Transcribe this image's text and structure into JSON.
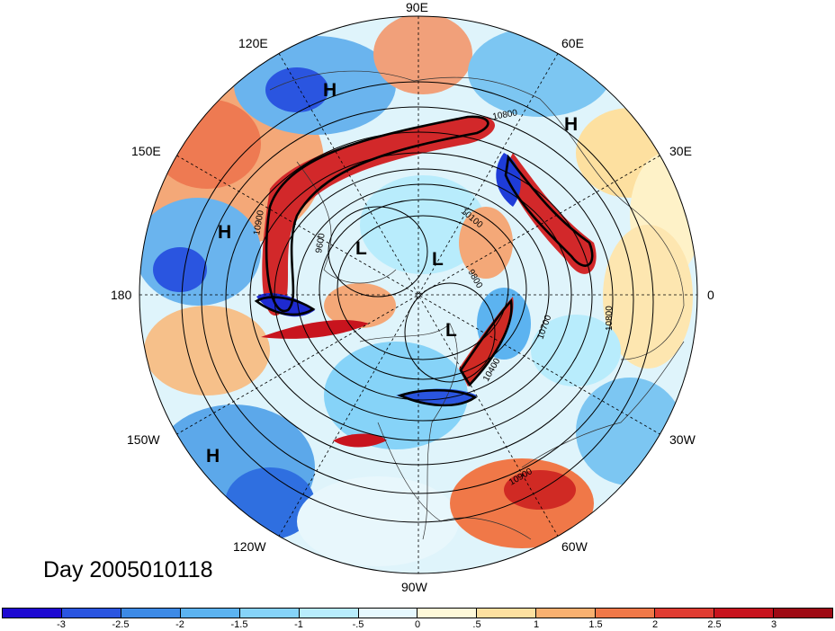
{
  "map": {
    "longitude_labels": {
      "top": "90E",
      "upper_left": "120E",
      "upper_right": "60E",
      "left_upper": "150E",
      "right_upper": "30E",
      "left": "180",
      "right": "0",
      "left_lower": "150W",
      "right_lower": "30W",
      "lower_left": "120W",
      "lower_right": "60W",
      "bottom": "90W"
    },
    "pressure_centers": [
      {
        "label": "H",
        "id": "h-east-asia"
      },
      {
        "label": "H",
        "id": "h-europe"
      },
      {
        "label": "H",
        "id": "h-north-pacific"
      },
      {
        "label": "H",
        "id": "h-east-pacific"
      },
      {
        "label": "L",
        "id": "l-siberia"
      },
      {
        "label": "L",
        "id": "l-pole"
      },
      {
        "label": "L",
        "id": "l-canada"
      }
    ],
    "contour_labels": [
      "10800",
      "10900",
      "10100",
      "9600",
      "9800",
      "10700",
      "10400",
      "10800",
      "10900"
    ],
    "title": "Day 2005010118"
  },
  "colorbar": {
    "colors": [
      "#1e0ad2",
      "#2a55e0",
      "#3d8ae6",
      "#5cb3f0",
      "#86d3f8",
      "#b8ecfc",
      "#e6f8fe",
      "#fef8d8",
      "#fde0a0",
      "#f8b070",
      "#f07848",
      "#e03c32",
      "#c8141e",
      "#9e0a14"
    ],
    "tick_labels": [
      "-3",
      "-2.5",
      "-2",
      "-1.5",
      "-1",
      "-.5",
      "0",
      ".5",
      "1",
      "1.5",
      "2",
      "2.5",
      "3"
    ]
  }
}
